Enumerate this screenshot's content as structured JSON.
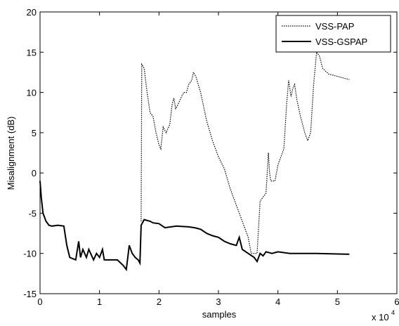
{
  "chart_data": {
    "type": "line",
    "xlabel": "samples",
    "ylabel": "Misalignment (dB)",
    "x_multiplier": "x 10",
    "x_multiplier_exponent": "4",
    "xlim": [
      0,
      6
    ],
    "xticks": [
      0,
      1,
      2,
      3,
      4,
      5,
      6
    ],
    "ylim": [
      -15,
      20
    ],
    "yticks": [
      -15,
      -10,
      -5,
      0,
      5,
      10,
      15,
      20
    ],
    "grid": false,
    "legend": "upper right",
    "series": [
      {
        "name": "VSS-PAP",
        "color": "#000000",
        "dash": "dotted",
        "x": [
          1.7,
          1.71,
          1.75,
          1.8,
          1.85,
          1.9,
          1.95,
          2.0,
          2.03,
          2.07,
          2.12,
          2.18,
          2.22,
          2.25,
          2.28,
          2.32,
          2.38,
          2.42,
          2.46,
          2.5,
          2.55,
          2.58,
          2.62,
          2.7,
          2.8,
          2.9,
          3.0,
          3.1,
          3.2,
          3.3,
          3.4,
          3.5,
          3.55,
          3.6,
          3.65,
          3.68,
          3.7,
          3.75,
          3.8,
          3.82,
          3.84,
          3.86,
          3.88,
          3.95,
          4.0,
          4.05,
          4.1,
          4.15,
          4.18,
          4.22,
          4.25,
          4.28,
          4.32,
          4.38,
          4.45,
          4.5,
          4.55,
          4.6,
          4.65,
          4.7,
          4.75,
          4.85,
          5.0,
          5.2
        ],
        "values": [
          -6,
          13.5,
          13,
          10,
          7.5,
          7,
          5,
          3.5,
          3,
          5.7,
          5,
          6,
          8.5,
          9.3,
          8,
          8.5,
          9.5,
          10,
          10,
          11,
          11.5,
          12.5,
          12,
          10,
          6.5,
          4,
          2,
          0.5,
          -2,
          -4,
          -6,
          -8,
          -10,
          -10,
          -10,
          -6,
          -3.5,
          -3,
          -2.5,
          0,
          2.5,
          0,
          -1,
          -1,
          1,
          2,
          3,
          9,
          11.5,
          9.5,
          10.5,
          11,
          9,
          7,
          5,
          4,
          5,
          11,
          15,
          14.5,
          13,
          12.3,
          12,
          11.6
        ]
      },
      {
        "name": "VSS-GSPAP",
        "color": "#000000",
        "dash": "solid",
        "x": [
          0,
          0.02,
          0.05,
          0.1,
          0.15,
          0.2,
          0.3,
          0.4,
          0.45,
          0.5,
          0.6,
          0.65,
          0.68,
          0.72,
          0.78,
          0.82,
          0.9,
          0.95,
          1.0,
          1.05,
          1.08,
          1.2,
          1.3,
          1.4,
          1.45,
          1.5,
          1.55,
          1.6,
          1.65,
          1.68,
          1.7,
          1.75,
          1.85,
          1.9,
          2.0,
          2.1,
          2.2,
          2.3,
          2.5,
          2.6,
          2.7,
          2.8,
          2.9,
          3.0,
          3.1,
          3.2,
          3.3,
          3.35,
          3.4,
          3.5,
          3.6,
          3.65,
          3.7,
          3.75,
          3.8,
          3.9,
          4.0,
          4.2,
          4.5,
          4.65,
          5.2
        ],
        "values": [
          -1,
          -3,
          -5,
          -6,
          -6.5,
          -6.6,
          -6.5,
          -6.6,
          -9,
          -10.5,
          -10.8,
          -8.5,
          -10.5,
          -9.5,
          -10.5,
          -9.5,
          -10.8,
          -10,
          -10.5,
          -9.5,
          -10.8,
          -10.8,
          -10.8,
          -11.5,
          -12,
          -9,
          -10,
          -10.5,
          -10.8,
          -11.2,
          -6.5,
          -5.8,
          -6,
          -6.2,
          -6.3,
          -6.8,
          -6.7,
          -6.6,
          -6.7,
          -6.8,
          -7,
          -7.5,
          -7.8,
          -8,
          -8.5,
          -8.8,
          -9,
          -8,
          -9.5,
          -10,
          -10.5,
          -11,
          -10,
          -10.3,
          -9.8,
          -10,
          -9.8,
          -10,
          -10,
          -10,
          -10.1
        ]
      }
    ]
  }
}
